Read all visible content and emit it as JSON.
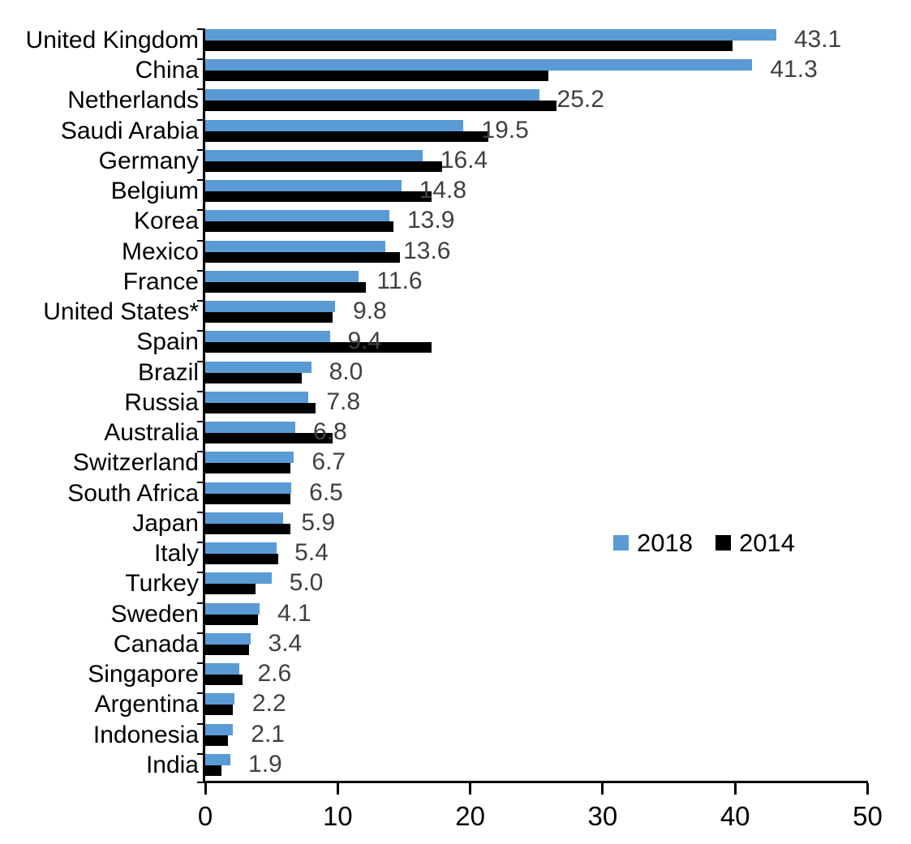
{
  "chart_data": {
    "type": "bar",
    "orientation": "horizontal",
    "title": "",
    "xlabel": "",
    "ylabel": "",
    "xlim": [
      0,
      50
    ],
    "x_ticks": [
      "0",
      "10",
      "20",
      "30",
      "40",
      "50"
    ],
    "grid": false,
    "categories": [
      "United Kingdom",
      "China",
      "Netherlands",
      "Saudi Arabia",
      "Germany",
      "Belgium",
      "Korea",
      "Mexico",
      "France",
      "United States*",
      "Spain",
      "Brazil",
      "Russia",
      "Australia",
      "Switzerland",
      "South Africa",
      "Japan",
      "Italy",
      "Turkey",
      "Sweden",
      "Canada",
      "Singapore",
      "Argentina",
      "Indonesia",
      "India"
    ],
    "series": [
      {
        "name": "2018",
        "color": "#5B9BD5",
        "values": [
          43.1,
          41.3,
          25.2,
          19.5,
          16.4,
          14.8,
          13.9,
          13.6,
          11.6,
          9.8,
          9.4,
          8.0,
          7.8,
          6.8,
          6.7,
          6.5,
          5.9,
          5.4,
          5.0,
          4.1,
          3.4,
          2.6,
          2.2,
          2.1,
          1.9
        ]
      },
      {
        "name": "2014",
        "color": "#000000",
        "values": [
          39.8,
          25.9,
          26.5,
          21.4,
          17.9,
          17.1,
          14.2,
          14.7,
          12.1,
          9.6,
          17.1,
          7.3,
          8.3,
          9.6,
          6.4,
          6.4,
          6.4,
          5.5,
          3.8,
          4.0,
          3.3,
          2.8,
          2.1,
          1.7,
          1.2
        ]
      }
    ],
    "data_labels": [
      "43.1",
      "41.3",
      "25.2",
      "19.5",
      "16.4",
      "14.8",
      "13.9",
      "13.6",
      "11.6",
      "9.8",
      "9.4",
      "8.0",
      "7.8",
      "6.8",
      "6.7",
      "6.5",
      "5.9",
      "5.4",
      "5.0",
      "4.1",
      "3.4",
      "2.6",
      "2.2",
      "2.1",
      "1.9"
    ],
    "data_labels_for_series": "2018",
    "legend": {
      "position": "center-right",
      "entries": [
        {
          "label": "2018",
          "color": "#5B9BD5"
        },
        {
          "label": "2014",
          "color": "#000000"
        }
      ]
    },
    "colors": {
      "series_2018": "#5B9BD5",
      "series_2014": "#000000",
      "value_label_text": "#404040",
      "axis_text": "#000000",
      "background": "#ffffff"
    }
  }
}
